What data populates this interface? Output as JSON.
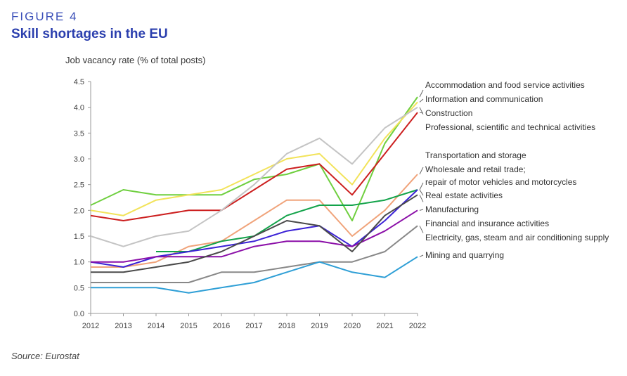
{
  "figure": {
    "label": "FIGURE 4",
    "title": "Skill shortages in the EU",
    "source": "Source: Eurostat"
  },
  "chart_data": {
    "type": "line",
    "ylabel": "Job vacancy rate (% of total posts)",
    "x": [
      "2012",
      "2013",
      "2014",
      "2015",
      "2016",
      "2017",
      "2018",
      "2019",
      "2020",
      "2021",
      "2022"
    ],
    "ylim": [
      0,
      4.5
    ],
    "yticks": [
      "0.0",
      "0.5",
      "1.0",
      "1.5",
      "2.0",
      "2.5",
      "3.0",
      "3.5",
      "4.0",
      "4.5"
    ],
    "grid": false,
    "legend": "right",
    "series": [
      {
        "name": "Accommodation and food service activities",
        "color": "#6fcf3f",
        "values": [
          2.1,
          2.4,
          2.3,
          2.3,
          2.3,
          2.6,
          2.7,
          2.9,
          1.8,
          3.3,
          4.2
        ]
      },
      {
        "name": "Information and communication",
        "color": "#f2e35a",
        "values": [
          2.0,
          1.9,
          2.2,
          2.3,
          2.4,
          2.7,
          3.0,
          3.1,
          2.5,
          3.4,
          4.1
        ]
      },
      {
        "name": "Construction",
        "color": "#cc1f1f",
        "values": [
          1.9,
          1.8,
          1.9,
          2.0,
          2.0,
          2.4,
          2.8,
          2.9,
          2.3,
          3.1,
          3.9
        ]
      },
      {
        "name": "Professional, scientific and technical activities",
        "color": "#c4c4c4",
        "values": [
          1.5,
          1.3,
          1.5,
          1.6,
          2.0,
          2.5,
          3.1,
          3.4,
          2.9,
          3.6,
          4.0
        ]
      },
      {
        "name": "Transportation and storage",
        "color": "#f0a37a",
        "values": [
          0.9,
          0.9,
          1.0,
          1.3,
          1.4,
          1.8,
          2.2,
          2.2,
          1.5,
          2.0,
          2.7
        ]
      },
      {
        "name": "Wholesale and retail trade; repair of motor vehicles and motorcycles",
        "color": "#13a34a",
        "values": [
          null,
          null,
          1.2,
          1.2,
          1.4,
          1.5,
          1.9,
          2.1,
          2.1,
          2.2,
          2.4
        ]
      },
      {
        "name": "Real estate activities",
        "color": "#3b22d6",
        "values": [
          1.0,
          0.9,
          1.1,
          1.2,
          1.3,
          1.4,
          1.6,
          1.7,
          1.3,
          1.8,
          2.4
        ]
      },
      {
        "name": "Manufacturing",
        "color": "#8b0fa8",
        "values": [
          1.0,
          1.0,
          1.1,
          1.1,
          1.1,
          1.3,
          1.4,
          1.4,
          1.3,
          1.6,
          2.0
        ]
      },
      {
        "name": "Financial and insurance activities",
        "color": "#4a4a4a",
        "values": [
          0.8,
          0.8,
          0.9,
          1.0,
          1.2,
          1.5,
          1.8,
          1.7,
          1.2,
          1.9,
          2.3
        ]
      },
      {
        "name": "Electricity, gas, steam and air conditioning supply",
        "color": "#888888",
        "values": [
          0.6,
          0.6,
          0.6,
          0.6,
          0.8,
          0.8,
          0.9,
          1.0,
          1.0,
          1.2,
          1.7
        ]
      },
      {
        "name": "Mining and quarrying",
        "color": "#2f9fd6",
        "values": [
          0.5,
          0.5,
          0.5,
          0.4,
          0.5,
          0.6,
          0.8,
          1.0,
          0.8,
          0.7,
          1.1
        ]
      }
    ],
    "annotations": [
      {
        "lines": [
          "Accommodation and food service activities"
        ]
      },
      {
        "lines": [
          "Information and communication"
        ]
      },
      {
        "lines": [
          "Construction"
        ]
      },
      {
        "lines": [
          "Professional, scientific and technical activities"
        ]
      },
      {
        "lines": [
          "Transportation and storage"
        ]
      },
      {
        "lines": [
          "Wholesale and retail trade;",
          "repair of motor vehicles and motorcycles"
        ]
      },
      {
        "lines": [
          "Real estate activities"
        ]
      },
      {
        "lines": [
          "Manufacturing"
        ]
      },
      {
        "lines": [
          "Financial and insurance activities"
        ]
      },
      {
        "lines": [
          "Electricity, gas, steam and air conditioning supply"
        ]
      },
      {
        "lines": [
          "Mining and quarrying"
        ]
      }
    ]
  }
}
